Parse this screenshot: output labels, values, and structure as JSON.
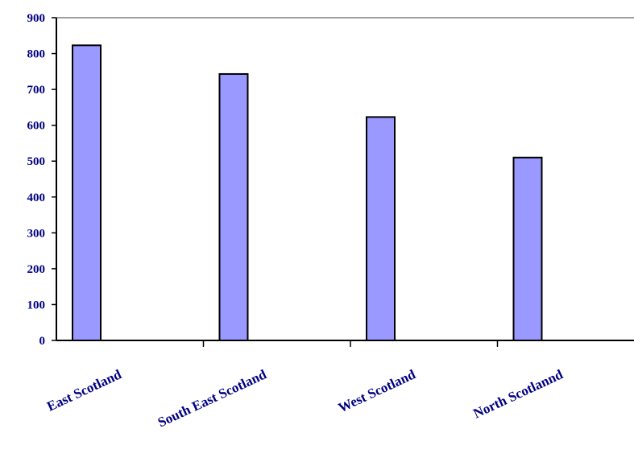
{
  "chart_data": {
    "type": "bar",
    "categories": [
      "East Scotland",
      "South East Scotland",
      "West Scotland",
      "North Scotlannd"
    ],
    "values": [
      823,
      743,
      623,
      510
    ],
    "ylim": [
      0,
      900
    ],
    "yticks": [
      0,
      100,
      200,
      300,
      400,
      500,
      600,
      700,
      800,
      900
    ],
    "title": "",
    "xlabel": "",
    "ylabel": "",
    "grid": false,
    "legend": "none",
    "colors": {
      "bar_fill": "#9999ff",
      "bar_stroke": "#000000",
      "text": "#000080",
      "axis": "#000000",
      "plot_border_top": "#808080"
    }
  }
}
